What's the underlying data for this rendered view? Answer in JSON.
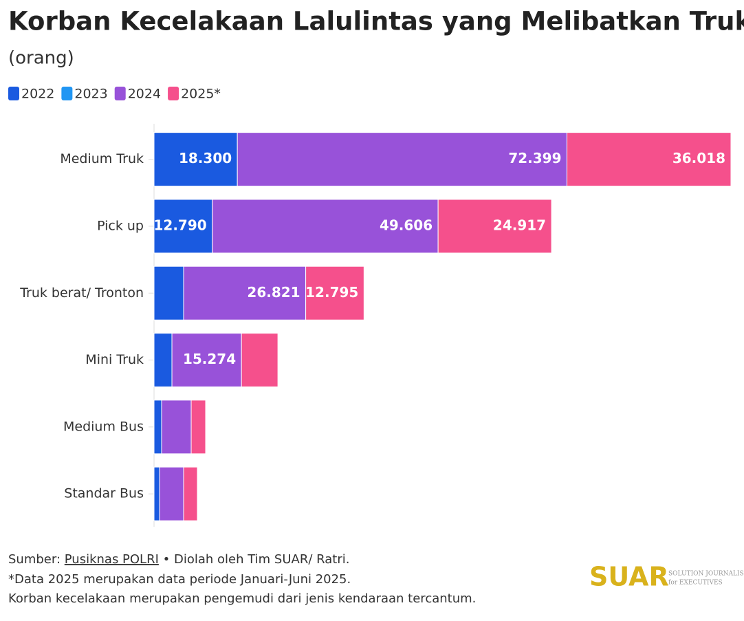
{
  "chart_data": {
    "type": "stacked-bar-horizontal",
    "title": "Korban Kecelakaan Lalulintas yang Melibatkan Truk",
    "subtitle": "(orang)",
    "categories": [
      "Medium Truk",
      "Pick up",
      "Truk berat/ Tronton",
      "Mini Truk",
      "Medium Bus",
      "Standar Bus"
    ],
    "series": [
      {
        "name": "2022",
        "color": "#1a5ae0",
        "values": [
          18300,
          12790,
          6500,
          3930,
          1660,
          1210
        ],
        "value_labels": [
          "18.300",
          "12.790",
          null,
          null,
          null,
          null
        ]
      },
      {
        "name": "2023",
        "color": "#2196f3",
        "values": [
          null,
          null,
          null,
          null,
          null,
          null
        ]
      },
      {
        "name": "2024",
        "color": "#9852d9",
        "values": [
          72399,
          49606,
          26821,
          15274,
          6500,
          5290
        ],
        "value_labels": [
          "72.399",
          "49.606",
          "26.821",
          "15.274",
          null,
          null
        ]
      },
      {
        "name": "2025*",
        "color": "#f5508c",
        "values": [
          36018,
          24917,
          12795,
          8000,
          3170,
          3020
        ],
        "value_labels": [
          "36.018",
          "24.917",
          "12.795",
          null,
          null,
          null
        ]
      }
    ]
  },
  "footer": {
    "source_prefix": "Sumber: ",
    "source_link": "Pusiknas POLRI",
    "source_suffix": " • Diolah oleh Tim SUAR/ Ratri.",
    "note_1": "*Data 2025 merupakan data periode Januari-Juni 2025.",
    "note_2": "Korban kecelakaan merupakan pengemudi dari jenis kendaraan tercantum."
  },
  "logo": {
    "name": "SUAR",
    "tagline_1": "SOLUTION JOURNALISM",
    "tagline_2": "for EXECUTIVES"
  }
}
